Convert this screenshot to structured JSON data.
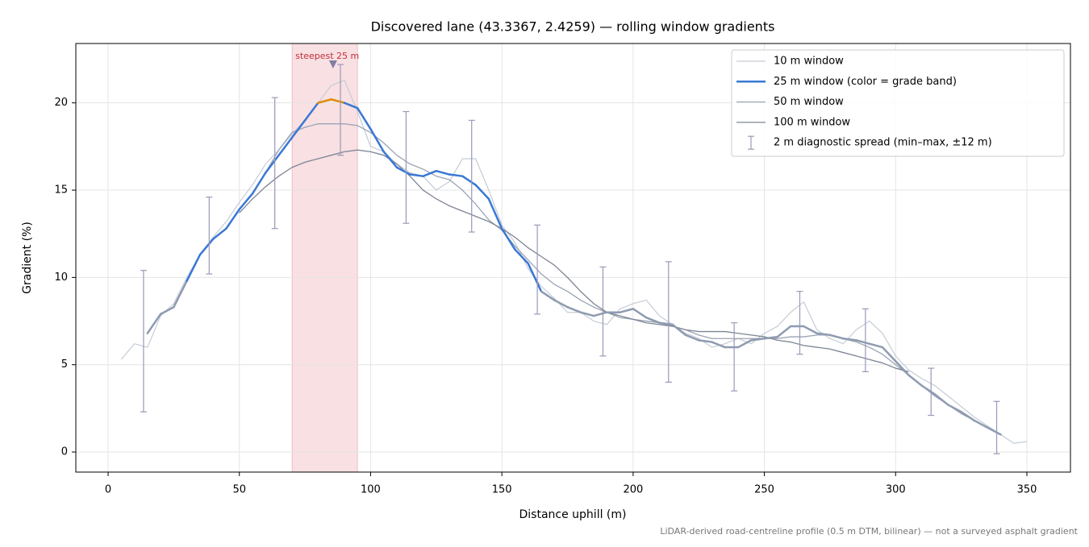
{
  "chart_data": {
    "type": "line",
    "title": "Discovered lane (43.3367, 2.4259) — rolling window gradients",
    "x_label": "Distance uphill (m)",
    "y_label": "Gradient (%)",
    "footnote": "LiDAR-derived road-centreline profile (0.5 m DTM, bilinear) — not a surveyed asphalt gradient",
    "xlim": [
      -12.3,
      366.6
    ],
    "ylim": [
      -1.15,
      23.4
    ],
    "xticks": [
      0,
      50,
      100,
      150,
      200,
      250,
      300,
      350
    ],
    "yticks": [
      0,
      5,
      10,
      15,
      20
    ],
    "grid": true,
    "legend": "upper right",
    "x": [
      5,
      10,
      15,
      20,
      25,
      30,
      35,
      40,
      45,
      50,
      55,
      60,
      65,
      70,
      75,
      80,
      85,
      90,
      95,
      100,
      105,
      110,
      115,
      120,
      125,
      130,
      135,
      140,
      145,
      150,
      155,
      160,
      165,
      170,
      175,
      180,
      185,
      190,
      195,
      200,
      205,
      210,
      215,
      220,
      225,
      230,
      235,
      240,
      245,
      250,
      255,
      260,
      265,
      270,
      275,
      280,
      285,
      290,
      295,
      300,
      305,
      310,
      315,
      320,
      325,
      330,
      335,
      340,
      345,
      350
    ],
    "series": [
      {
        "name": "10 m window",
        "color": "#c5ccd6",
        "width": 1.2,
        "values": [
          5.3,
          6.2,
          6.0,
          7.8,
          8.5,
          10.0,
          11.3,
          12.3,
          13.2,
          14.3,
          15.3,
          16.5,
          17.3,
          18.2,
          19.0,
          20.0,
          21.0,
          21.3,
          19.5,
          17.5,
          17.2,
          16.5,
          16.0,
          15.8,
          15.0,
          15.5,
          16.8,
          16.8,
          15.0,
          13.0,
          12.0,
          10.5,
          9.5,
          8.8,
          8.0,
          8.0,
          7.5,
          7.3,
          8.2,
          8.5,
          8.7,
          7.8,
          7.3,
          6.8,
          6.5,
          6.0,
          6.2,
          6.5,
          6.2,
          6.8,
          7.2,
          8.0,
          8.6,
          7.0,
          6.5,
          6.2,
          7.0,
          7.5,
          6.8,
          5.5,
          4.7,
          4.2,
          3.8,
          3.2,
          2.6,
          2.0,
          1.5,
          1.0,
          0.5,
          0.6
        ]
      },
      {
        "name": "25 m window (color = grade band)",
        "color": "#3a78d4",
        "width": 2.5,
        "band_thresholds": [
          10,
          20
        ],
        "band_colors": [
          "#8e9bb0",
          "#3a78d4",
          "#e08a00"
        ],
        "values": [
          null,
          null,
          6.8,
          7.9,
          8.3,
          9.8,
          11.3,
          12.2,
          12.8,
          13.9,
          14.8,
          16.0,
          17.0,
          18.0,
          19.0,
          20.0,
          20.2,
          20.0,
          19.7,
          18.5,
          17.2,
          16.3,
          15.9,
          15.8,
          16.1,
          15.9,
          15.8,
          15.3,
          14.5,
          12.8,
          11.6,
          10.8,
          9.2,
          8.7,
          8.3,
          8.0,
          7.8,
          8.0,
          8.0,
          8.2,
          7.7,
          7.4,
          7.3,
          6.7,
          6.4,
          6.3,
          6.0,
          6.0,
          6.4,
          6.5,
          6.6,
          7.2,
          7.2,
          6.8,
          6.7,
          6.5,
          6.4,
          6.2,
          6.0,
          5.2,
          4.4,
          3.8,
          3.3,
          2.7,
          2.3,
          1.8,
          1.4,
          1.0,
          null,
          null
        ]
      },
      {
        "name": "50 m window",
        "color": "#9aa4b4",
        "width": 1.3,
        "values": [
          null,
          null,
          6.8,
          7.9,
          8.3,
          9.8,
          11.3,
          12.2,
          12.8,
          13.9,
          14.8,
          16.0,
          17.3,
          18.3,
          18.6,
          18.8,
          18.8,
          18.8,
          18.7,
          18.3,
          17.7,
          17.0,
          16.5,
          16.2,
          15.8,
          15.6,
          15.0,
          14.2,
          13.3,
          12.7,
          11.8,
          11.0,
          10.2,
          9.6,
          9.2,
          8.7,
          8.3,
          8.0,
          7.7,
          7.6,
          7.5,
          7.4,
          7.2,
          7.0,
          6.7,
          6.5,
          6.5,
          6.5,
          6.5,
          6.5,
          6.5,
          6.6,
          6.6,
          6.7,
          6.7,
          6.5,
          6.3,
          6.0,
          5.6,
          5.0,
          4.4,
          3.8,
          3.2,
          2.7,
          2.2,
          1.8,
          1.4,
          1.0,
          null,
          null
        ]
      },
      {
        "name": "100 m window",
        "color": "#7d8594",
        "width": 1.3,
        "values": [
          null,
          null,
          null,
          null,
          null,
          null,
          null,
          null,
          null,
          13.7,
          14.5,
          15.2,
          15.8,
          16.3,
          16.6,
          16.8,
          17.0,
          17.2,
          17.3,
          17.2,
          17.0,
          16.5,
          15.8,
          15.0,
          14.5,
          14.1,
          13.8,
          13.5,
          13.2,
          12.8,
          12.3,
          11.7,
          11.2,
          10.7,
          10.0,
          9.2,
          8.5,
          8.0,
          7.8,
          7.6,
          7.4,
          7.3,
          7.2,
          7.0,
          6.9,
          6.9,
          6.9,
          6.8,
          6.7,
          6.6,
          6.4,
          6.3,
          6.1,
          6.0,
          5.9,
          5.7,
          5.5,
          5.3,
          5.1,
          4.8,
          4.6,
          null,
          null,
          null,
          null,
          null,
          null,
          null,
          null,
          null
        ]
      }
    ],
    "spread": {
      "name": "2 m diagnostic spread (min–max, ±12 m)",
      "color": "#9a98b8",
      "x": [
        13.5,
        38.5,
        63.5,
        88.5,
        113.5,
        138.5,
        163.5,
        188.5,
        213.5,
        238.5,
        263.5,
        288.5,
        313.5,
        338.5
      ],
      "min": [
        2.3,
        10.2,
        12.8,
        17.0,
        13.1,
        12.6,
        7.9,
        5.5,
        4.0,
        3.5,
        5.6,
        4.6,
        2.1,
        -0.1
      ],
      "max": [
        10.4,
        14.6,
        20.3,
        22.2,
        19.5,
        19.0,
        13.0,
        10.6,
        10.9,
        7.4,
        9.2,
        8.2,
        4.8,
        2.9
      ]
    },
    "highlight": {
      "from": 70.1,
      "to": 95.0,
      "label": "steepest 25 m",
      "color": "#e8a0a8",
      "label_color": "#c0303a",
      "marker_x": 85.7,
      "marker_y": 22.2,
      "marker_color": "#8080a0"
    }
  }
}
